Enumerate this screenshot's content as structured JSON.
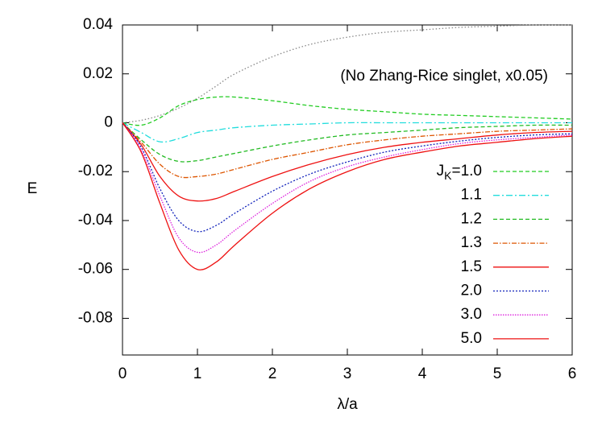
{
  "chart_data": {
    "type": "line",
    "xlabel": "λ/a",
    "ylabel": "E",
    "annotation": "(No Zhang-Rice singlet, x0.05)",
    "x": [
      0,
      0.25,
      0.5,
      0.75,
      1,
      1.25,
      1.5,
      2,
      2.5,
      3,
      3.5,
      4,
      4.5,
      5,
      5.5,
      6
    ],
    "xlim": [
      0,
      6
    ],
    "xticks": [
      0,
      1,
      2,
      3,
      4,
      5,
      6
    ],
    "ylim": [
      -0.095,
      0.04
    ],
    "yticks": [
      0.04,
      0.02,
      0,
      -0.02,
      -0.04,
      -0.06,
      -0.08
    ],
    "legend": "right",
    "series": [
      {
        "color": "#888888",
        "dash": "1.5,2.5",
        "values": [
          0,
          0.001,
          0.003,
          0.006,
          0.01,
          0.015,
          0.02,
          0.027,
          0.032,
          0.035,
          0.037,
          0.038,
          0.039,
          0.0395,
          0.04,
          0.04
        ]
      },
      {
        "name": "JK=1.0",
        "color": "#22cc22",
        "dash": "5,3",
        "values": [
          0,
          -0.001,
          0.002,
          0.007,
          0.0095,
          0.0105,
          0.0105,
          0.009,
          0.007,
          0.0055,
          0.0045,
          0.0035,
          0.003,
          0.0025,
          0.002,
          0.0015
        ]
      },
      {
        "name": "1.1",
        "color": "#22dddd",
        "dash": "8,3,2,3",
        "values": [
          0,
          -0.004,
          -0.0078,
          -0.0065,
          -0.004,
          -0.003,
          -0.002,
          -0.001,
          -0.0005,
          0,
          0,
          0,
          0,
          0,
          0,
          0
        ]
      },
      {
        "name": "1.2",
        "color": "#22bb22",
        "dash": "5,3",
        "values": [
          0,
          -0.007,
          -0.013,
          -0.0158,
          -0.0155,
          -0.014,
          -0.0125,
          -0.0095,
          -0.007,
          -0.005,
          -0.004,
          -0.003,
          -0.002,
          -0.0015,
          -0.001,
          -0.001
        ]
      },
      {
        "name": "1.3",
        "color": "#dd5500",
        "dash": "6,2,1.5,2",
        "values": [
          0,
          -0.008,
          -0.017,
          -0.022,
          -0.022,
          -0.021,
          -0.019,
          -0.015,
          -0.012,
          -0.009,
          -0.007,
          -0.0055,
          -0.0045,
          -0.0035,
          -0.003,
          -0.0025
        ]
      },
      {
        "name": "1.5",
        "color": "#ee1111",
        "dash": "none",
        "values": [
          0,
          -0.009,
          -0.022,
          -0.03,
          -0.032,
          -0.031,
          -0.028,
          -0.022,
          -0.017,
          -0.013,
          -0.01,
          -0.008,
          -0.0065,
          -0.005,
          -0.004,
          -0.0035
        ]
      },
      {
        "name": "2.0",
        "color": "#1122bb",
        "dash": "2,2",
        "values": [
          0,
          -0.01,
          -0.027,
          -0.04,
          -0.0445,
          -0.042,
          -0.037,
          -0.028,
          -0.021,
          -0.016,
          -0.012,
          -0.0095,
          -0.0075,
          -0.006,
          -0.005,
          -0.0045
        ]
      },
      {
        "name": "3.0",
        "color": "#dd22dd",
        "dash": "1.5,1.5",
        "values": [
          0,
          -0.011,
          -0.03,
          -0.047,
          -0.053,
          -0.05,
          -0.044,
          -0.033,
          -0.024,
          -0.018,
          -0.014,
          -0.011,
          -0.0085,
          -0.007,
          -0.006,
          -0.005
        ]
      },
      {
        "name": "5.0",
        "color": "#ee1111",
        "dash": "none",
        "values": [
          0,
          -0.012,
          -0.033,
          -0.052,
          -0.06,
          -0.057,
          -0.05,
          -0.037,
          -0.027,
          -0.02,
          -0.015,
          -0.012,
          -0.0095,
          -0.008,
          -0.0065,
          -0.0055
        ]
      }
    ]
  }
}
